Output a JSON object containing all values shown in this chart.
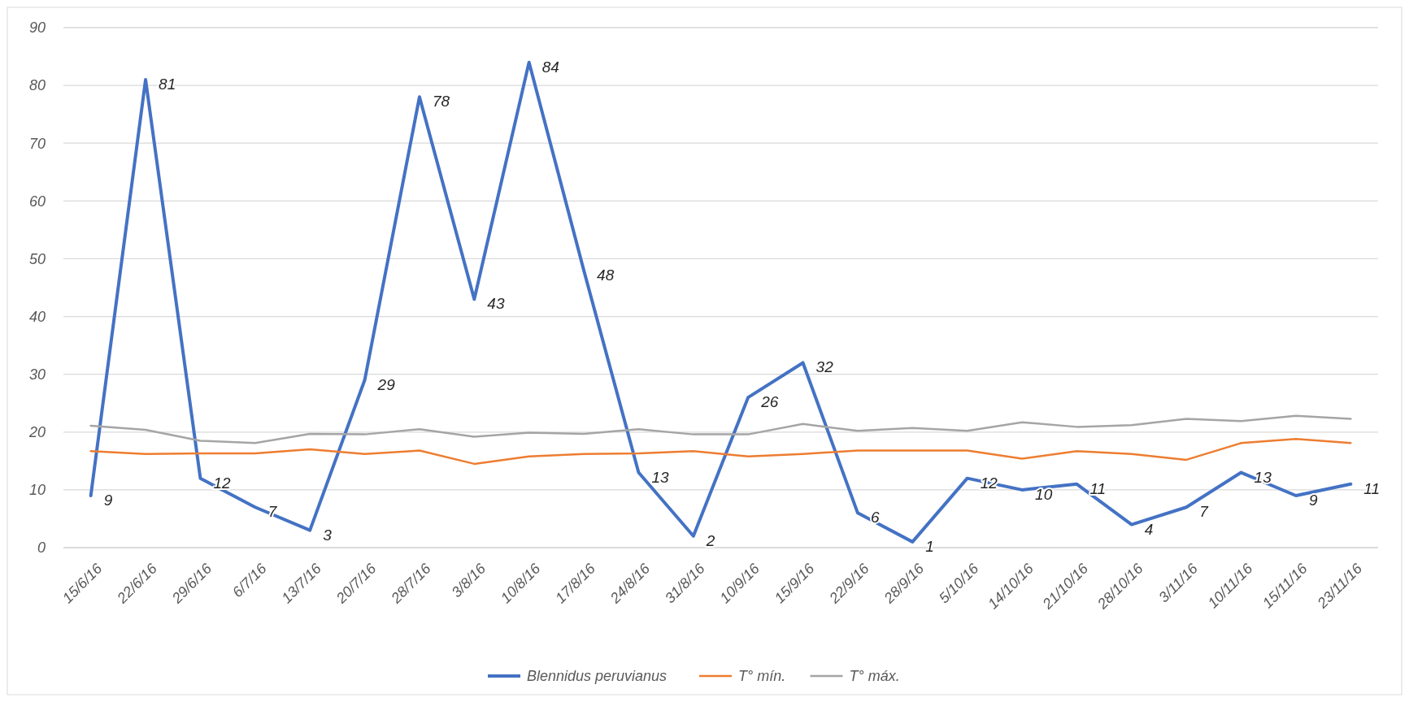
{
  "chart_data": {
    "type": "line",
    "categories": [
      "15/6/16",
      "22/6/16",
      "29/6/16",
      "6/7/16",
      "13/7/16",
      "20/7/16",
      "28/7/16",
      "3/8/16",
      "10/8/16",
      "17/8/16",
      "24/8/16",
      "31/8/16",
      "10/9/16",
      "15/9/16",
      "22/9/16",
      "28/9/16",
      "5/10/16",
      "14/10/16",
      "21/10/16",
      "28/10/16",
      "3/11/16",
      "10/11/16",
      "15/11/16",
      "23/11/16"
    ],
    "series": [
      {
        "name": "Blennidus peruvianus",
        "color": "#4472c4",
        "values": [
          9,
          81,
          12,
          7,
          3,
          29,
          78,
          43,
          84,
          48,
          13,
          2,
          26,
          32,
          6,
          1,
          12,
          10,
          11,
          4,
          7,
          13,
          9,
          11
        ],
        "value_labels": [
          "9",
          "81",
          "12",
          "7",
          "3",
          "29",
          "78",
          "43",
          "84",
          "48",
          "13",
          "2",
          "26",
          "32",
          "6",
          "1",
          "12",
          "10",
          "11",
          "4",
          "7",
          "13",
          "9",
          "11"
        ]
      },
      {
        "name": "T° mín.",
        "color": "#ed7d31",
        "values": [
          16.7,
          16.2,
          16.3,
          16.3,
          17.0,
          16.2,
          16.8,
          14.5,
          15.8,
          16.2,
          16.3,
          16.7,
          15.8,
          16.2,
          16.8,
          16.8,
          16.8,
          15.4,
          16.7,
          16.2,
          15.2,
          18.1,
          18.8,
          18.1
        ]
      },
      {
        "name": "T° máx.",
        "color": "#a5a5a5",
        "values": [
          21.1,
          20.4,
          18.5,
          18.1,
          19.7,
          19.6,
          20.5,
          19.2,
          19.9,
          19.7,
          20.5,
          19.6,
          19.6,
          21.4,
          20.2,
          20.7,
          20.2,
          21.7,
          20.9,
          21.2,
          22.3,
          21.9,
          22.8,
          22.3
        ]
      }
    ],
    "ylim": [
      0,
      90
    ],
    "yticks": [
      0,
      10,
      20,
      30,
      40,
      50,
      60,
      70,
      80,
      90
    ],
    "grid": "y",
    "legend": "bottom",
    "marker": "none",
    "line_style": "solid"
  }
}
